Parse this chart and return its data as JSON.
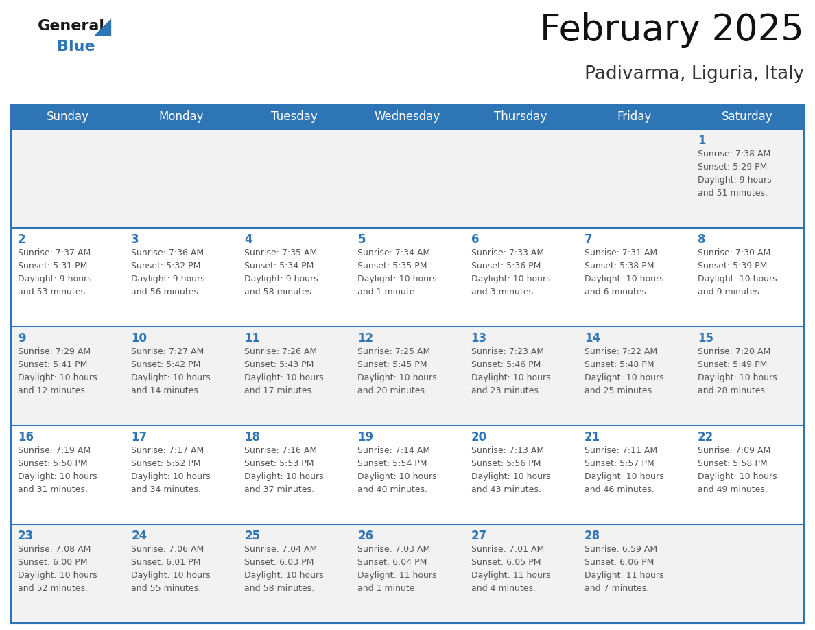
{
  "title": "February 2025",
  "subtitle": "Padivarma, Liguria, Italy",
  "header_bg": "#2e75b6",
  "header_text_color": "#ffffff",
  "cell_border_color": "#2e75b6",
  "day_number_color": "#2e75b6",
  "info_text_color": "#555555",
  "background_color": "#ffffff",
  "row_alt_bg": "#f2f2f2",
  "days_of_week": [
    "Sunday",
    "Monday",
    "Tuesday",
    "Wednesday",
    "Thursday",
    "Friday",
    "Saturday"
  ],
  "weeks": [
    [
      {
        "day": null,
        "info": ""
      },
      {
        "day": null,
        "info": ""
      },
      {
        "day": null,
        "info": ""
      },
      {
        "day": null,
        "info": ""
      },
      {
        "day": null,
        "info": ""
      },
      {
        "day": null,
        "info": ""
      },
      {
        "day": 1,
        "info": "Sunrise: 7:38 AM\nSunset: 5:29 PM\nDaylight: 9 hours\nand 51 minutes."
      }
    ],
    [
      {
        "day": 2,
        "info": "Sunrise: 7:37 AM\nSunset: 5:31 PM\nDaylight: 9 hours\nand 53 minutes."
      },
      {
        "day": 3,
        "info": "Sunrise: 7:36 AM\nSunset: 5:32 PM\nDaylight: 9 hours\nand 56 minutes."
      },
      {
        "day": 4,
        "info": "Sunrise: 7:35 AM\nSunset: 5:34 PM\nDaylight: 9 hours\nand 58 minutes."
      },
      {
        "day": 5,
        "info": "Sunrise: 7:34 AM\nSunset: 5:35 PM\nDaylight: 10 hours\nand 1 minute."
      },
      {
        "day": 6,
        "info": "Sunrise: 7:33 AM\nSunset: 5:36 PM\nDaylight: 10 hours\nand 3 minutes."
      },
      {
        "day": 7,
        "info": "Sunrise: 7:31 AM\nSunset: 5:38 PM\nDaylight: 10 hours\nand 6 minutes."
      },
      {
        "day": 8,
        "info": "Sunrise: 7:30 AM\nSunset: 5:39 PM\nDaylight: 10 hours\nand 9 minutes."
      }
    ],
    [
      {
        "day": 9,
        "info": "Sunrise: 7:29 AM\nSunset: 5:41 PM\nDaylight: 10 hours\nand 12 minutes."
      },
      {
        "day": 10,
        "info": "Sunrise: 7:27 AM\nSunset: 5:42 PM\nDaylight: 10 hours\nand 14 minutes."
      },
      {
        "day": 11,
        "info": "Sunrise: 7:26 AM\nSunset: 5:43 PM\nDaylight: 10 hours\nand 17 minutes."
      },
      {
        "day": 12,
        "info": "Sunrise: 7:25 AM\nSunset: 5:45 PM\nDaylight: 10 hours\nand 20 minutes."
      },
      {
        "day": 13,
        "info": "Sunrise: 7:23 AM\nSunset: 5:46 PM\nDaylight: 10 hours\nand 23 minutes."
      },
      {
        "day": 14,
        "info": "Sunrise: 7:22 AM\nSunset: 5:48 PM\nDaylight: 10 hours\nand 25 minutes."
      },
      {
        "day": 15,
        "info": "Sunrise: 7:20 AM\nSunset: 5:49 PM\nDaylight: 10 hours\nand 28 minutes."
      }
    ],
    [
      {
        "day": 16,
        "info": "Sunrise: 7:19 AM\nSunset: 5:50 PM\nDaylight: 10 hours\nand 31 minutes."
      },
      {
        "day": 17,
        "info": "Sunrise: 7:17 AM\nSunset: 5:52 PM\nDaylight: 10 hours\nand 34 minutes."
      },
      {
        "day": 18,
        "info": "Sunrise: 7:16 AM\nSunset: 5:53 PM\nDaylight: 10 hours\nand 37 minutes."
      },
      {
        "day": 19,
        "info": "Sunrise: 7:14 AM\nSunset: 5:54 PM\nDaylight: 10 hours\nand 40 minutes."
      },
      {
        "day": 20,
        "info": "Sunrise: 7:13 AM\nSunset: 5:56 PM\nDaylight: 10 hours\nand 43 minutes."
      },
      {
        "day": 21,
        "info": "Sunrise: 7:11 AM\nSunset: 5:57 PM\nDaylight: 10 hours\nand 46 minutes."
      },
      {
        "day": 22,
        "info": "Sunrise: 7:09 AM\nSunset: 5:58 PM\nDaylight: 10 hours\nand 49 minutes."
      }
    ],
    [
      {
        "day": 23,
        "info": "Sunrise: 7:08 AM\nSunset: 6:00 PM\nDaylight: 10 hours\nand 52 minutes."
      },
      {
        "day": 24,
        "info": "Sunrise: 7:06 AM\nSunset: 6:01 PM\nDaylight: 10 hours\nand 55 minutes."
      },
      {
        "day": 25,
        "info": "Sunrise: 7:04 AM\nSunset: 6:03 PM\nDaylight: 10 hours\nand 58 minutes."
      },
      {
        "day": 26,
        "info": "Sunrise: 7:03 AM\nSunset: 6:04 PM\nDaylight: 11 hours\nand 1 minute."
      },
      {
        "day": 27,
        "info": "Sunrise: 7:01 AM\nSunset: 6:05 PM\nDaylight: 11 hours\nand 4 minutes."
      },
      {
        "day": 28,
        "info": "Sunrise: 6:59 AM\nSunset: 6:06 PM\nDaylight: 11 hours\nand 7 minutes."
      },
      {
        "day": null,
        "info": ""
      }
    ]
  ],
  "logo_general_color": "#1a1a1a",
  "logo_blue_color": "#2e75b6",
  "title_fontsize": 38,
  "subtitle_fontsize": 19,
  "header_fontsize": 12,
  "day_number_fontsize": 12,
  "info_fontsize": 9
}
